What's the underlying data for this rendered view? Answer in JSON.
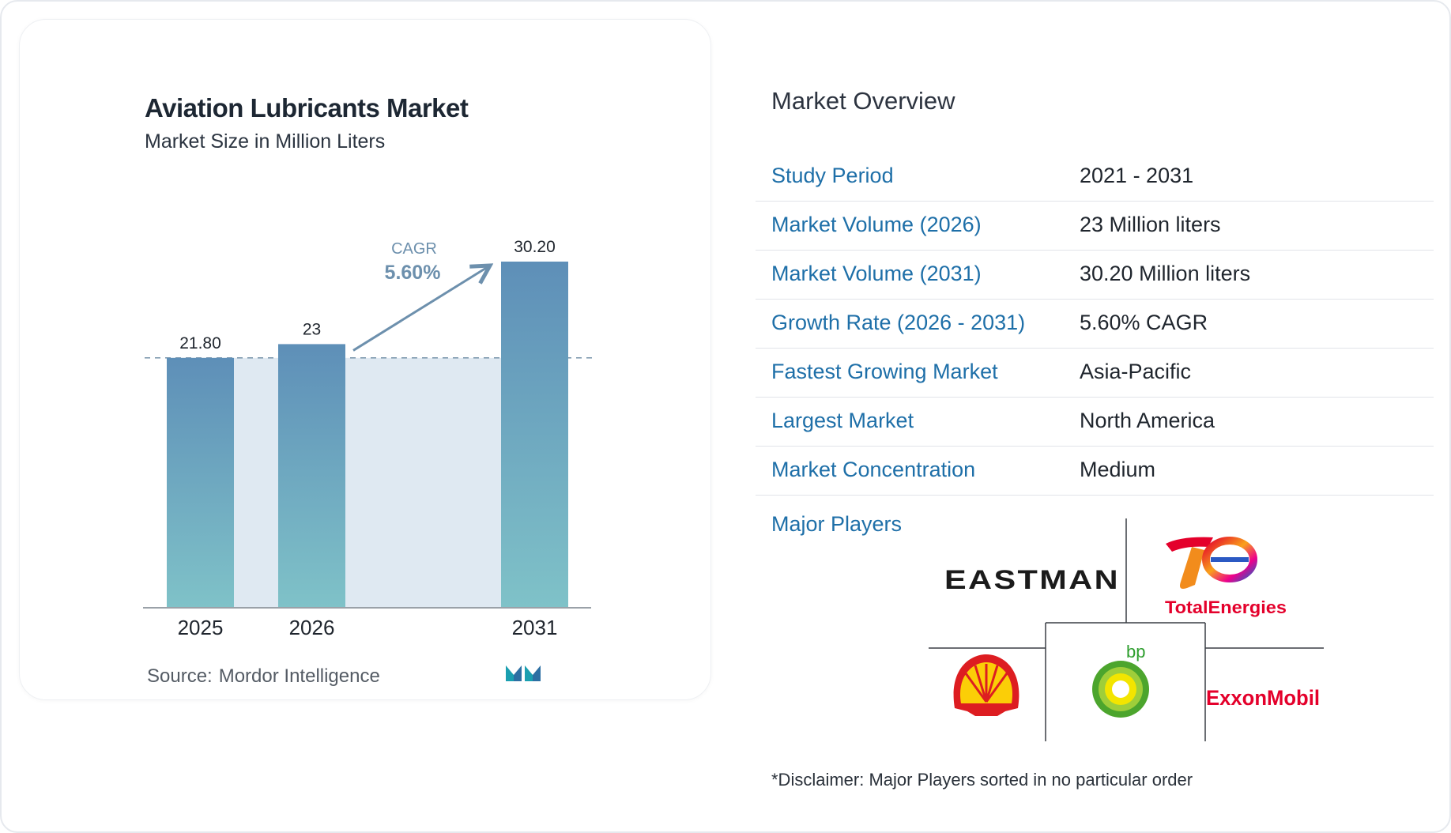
{
  "chart_data": {
    "type": "bar",
    "title": "Aviation Lubricants Market",
    "subtitle": "Market Size in Million Liters",
    "categories": [
      "2025",
      "2026",
      "2031"
    ],
    "values": [
      21.8,
      23,
      30.2
    ],
    "value_labels": [
      "21.80",
      "23",
      "30.20"
    ],
    "cagr": {
      "label": "CAGR",
      "value": "5.60%"
    },
    "ylim": [
      0,
      30.2
    ],
    "grid": false,
    "colors": {
      "bar_top": "#5e8fb8",
      "bar_bottom": "#7fc2c8",
      "fill_area": "#dfe9f2",
      "cagr": "#6d90ad"
    }
  },
  "source": {
    "label": "Source:",
    "name": "Mordor Intelligence"
  },
  "overview": {
    "title": "Market Overview",
    "rows": [
      {
        "label": "Study Period",
        "value": "2021 - 2031"
      },
      {
        "label": "Market Volume (2026)",
        "value": "23 Million liters"
      },
      {
        "label": "Market Volume (2031)",
        "value": "30.20 Million liters"
      },
      {
        "label": "Growth Rate (2026 - 2031)",
        "value": "5.60% CAGR"
      },
      {
        "label": "Fastest Growing Market",
        "value": "Asia-Pacific"
      },
      {
        "label": "Largest Market",
        "value": "North America"
      },
      {
        "label": "Market Concentration",
        "value": "Medium"
      }
    ],
    "players_label": "Major Players",
    "players": [
      "EASTMAN",
      "TotalEnergies",
      "bp",
      "ExxonMobil",
      "Shell"
    ],
    "disclaimer": "*Disclaimer: Major Players sorted in no particular order"
  }
}
